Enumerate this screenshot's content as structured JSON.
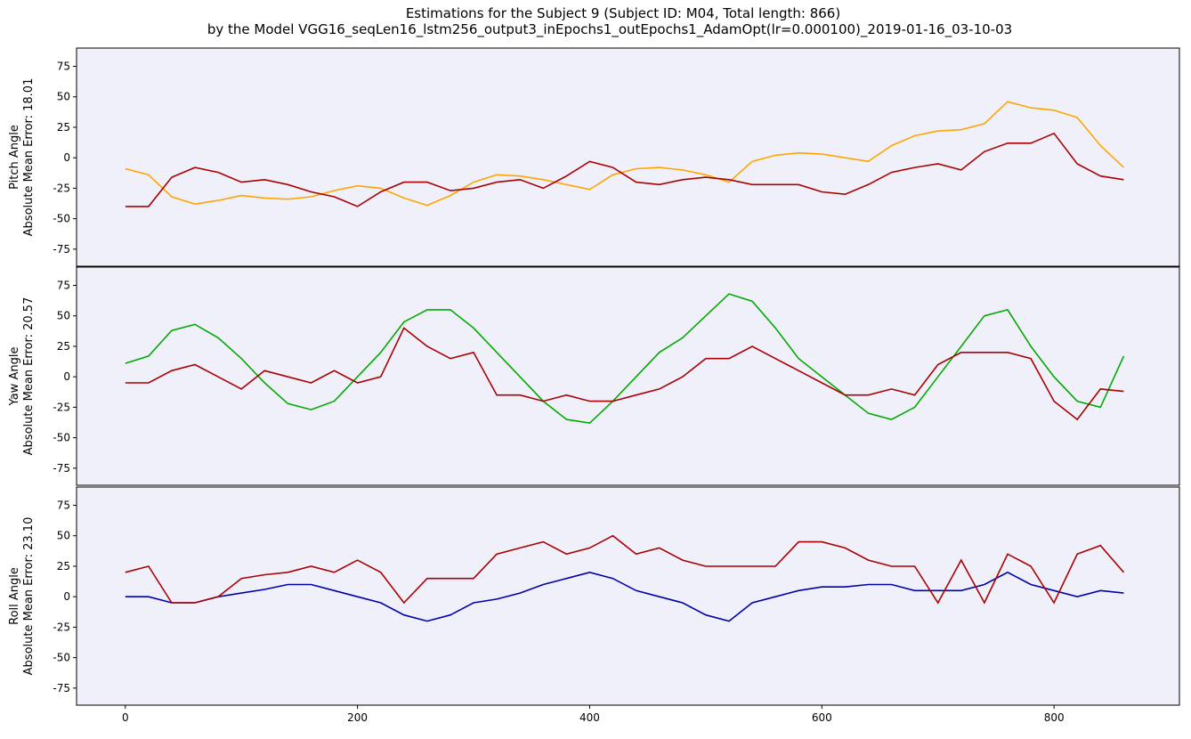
{
  "chart_data": [
    {
      "type": "line",
      "title": "Estimations for the Subject 9 (Subject ID: M04, Total length: 866)",
      "subtitle": "by the Model VGG16_seqLen16_lstm256_output3_inEpochs1_outEpochs1_AdamOpt(lr=0.000100)_2019-01-16_03-10-03",
      "ylabel": "Pitch Angle",
      "error_label": "Absolute Mean Error: 18.01",
      "x": [
        0,
        20,
        40,
        60,
        80,
        100,
        120,
        140,
        160,
        180,
        200,
        220,
        240,
        260,
        280,
        300,
        320,
        340,
        360,
        380,
        400,
        420,
        440,
        460,
        480,
        500,
        520,
        540,
        560,
        580,
        600,
        620,
        640,
        660,
        680,
        700,
        720,
        740,
        760,
        780,
        800,
        820,
        840,
        860
      ],
      "series": [
        {
          "color": "#ffa500",
          "values": [
            -9,
            -14,
            -32,
            -38,
            -35,
            -31,
            -33,
            -34,
            -32,
            -27,
            -23,
            -25,
            -33,
            -39,
            -31,
            -20,
            -14,
            -15,
            -18,
            -22,
            -26,
            -14,
            -9,
            -8,
            -10,
            -14,
            -20,
            -3,
            2,
            4,
            3,
            0,
            -3,
            10,
            18,
            22,
            23,
            28,
            46,
            41,
            39,
            33,
            10,
            -8
          ]
        },
        {
          "color": "#aa0000",
          "values": [
            -40,
            -40,
            -16,
            -8,
            -12,
            -20,
            -18,
            -22,
            -28,
            -32,
            -40,
            -28,
            -20,
            -20,
            -27,
            -25,
            -20,
            -18,
            -25,
            -15,
            -3,
            -8,
            -20,
            -22,
            -18,
            -16,
            -18,
            -22,
            -22,
            -22,
            -28,
            -30,
            -22,
            -12,
            -8,
            -5,
            -10,
            5,
            12,
            12,
            20,
            -5,
            -15,
            -18
          ]
        }
      ],
      "xlim": [
        -42,
        908
      ],
      "ylim": [
        -89,
        90
      ],
      "yticks": [
        -75,
        -50,
        -25,
        0,
        25,
        50,
        75
      ],
      "background": "#f0f0fa"
    },
    {
      "type": "line",
      "ylabel": "Yaw Angle",
      "error_label": "Absolute Mean Error: 20.57",
      "x": [
        0,
        20,
        40,
        60,
        80,
        100,
        120,
        140,
        160,
        180,
        200,
        220,
        240,
        260,
        280,
        300,
        320,
        340,
        360,
        380,
        400,
        420,
        440,
        460,
        480,
        500,
        520,
        540,
        560,
        580,
        600,
        620,
        640,
        660,
        680,
        700,
        720,
        740,
        760,
        780,
        800,
        820,
        840,
        860
      ],
      "series": [
        {
          "color": "#00aa00",
          "values": [
            11,
            17,
            38,
            43,
            32,
            15,
            -5,
            -22,
            -27,
            -20,
            0,
            20,
            45,
            55,
            55,
            40,
            20,
            0,
            -20,
            -35,
            -38,
            -20,
            0,
            20,
            32,
            50,
            68,
            62,
            40,
            15,
            0,
            -15,
            -30,
            -35,
            -25,
            0,
            25,
            50,
            55,
            25,
            0,
            -20,
            -25,
            17
          ]
        },
        {
          "color": "#aa0000",
          "values": [
            -5,
            -5,
            5,
            10,
            0,
            -10,
            5,
            0,
            -5,
            5,
            -5,
            0,
            40,
            25,
            15,
            20,
            -15,
            -15,
            -20,
            -15,
            -20,
            -20,
            -15,
            -10,
            0,
            15,
            15,
            25,
            15,
            5,
            -5,
            -15,
            -15,
            -10,
            -15,
            10,
            20,
            20,
            20,
            15,
            -20,
            -35,
            -10,
            -12
          ]
        }
      ],
      "xlim": [
        -42,
        908
      ],
      "ylim": [
        -89,
        90
      ],
      "yticks": [
        -75,
        -50,
        -25,
        0,
        25,
        50,
        75
      ],
      "background": "#f0f0fa"
    },
    {
      "type": "line",
      "ylabel": "Roll Angle",
      "error_label": "Absolute Mean Error: 23.10",
      "x": [
        0,
        20,
        40,
        60,
        80,
        100,
        120,
        140,
        160,
        180,
        200,
        220,
        240,
        260,
        280,
        300,
        320,
        340,
        360,
        380,
        400,
        420,
        440,
        460,
        480,
        500,
        520,
        540,
        560,
        580,
        600,
        620,
        640,
        660,
        680,
        700,
        720,
        740,
        760,
        780,
        800,
        820,
        840,
        860
      ],
      "series": [
        {
          "color": "#0000aa",
          "values": [
            0,
            0,
            -5,
            -5,
            0,
            3,
            6,
            10,
            10,
            5,
            0,
            -5,
            -15,
            -20,
            -15,
            -5,
            -2,
            3,
            10,
            15,
            20,
            15,
            5,
            0,
            -5,
            -15,
            -20,
            -5,
            0,
            5,
            8,
            8,
            10,
            10,
            5,
            5,
            5,
            10,
            20,
            10,
            5,
            0,
            5,
            3
          ]
        },
        {
          "color": "#aa0000",
          "values": [
            20,
            25,
            -5,
            -5,
            0,
            15,
            18,
            20,
            25,
            20,
            30,
            20,
            -5,
            15,
            15,
            15,
            35,
            40,
            45,
            35,
            40,
            50,
            35,
            40,
            30,
            25,
            25,
            25,
            25,
            45,
            45,
            40,
            30,
            25,
            25,
            -5,
            30,
            -5,
            35,
            25,
            -5,
            35,
            42,
            20
          ]
        }
      ],
      "xlim": [
        -42,
        908
      ],
      "ylim": [
        -89,
        90
      ],
      "yticks": [
        -75,
        -50,
        -25,
        0,
        25,
        50,
        75
      ],
      "xticks": [
        0,
        200,
        400,
        600,
        800
      ],
      "background": "#f0f0fa"
    }
  ]
}
